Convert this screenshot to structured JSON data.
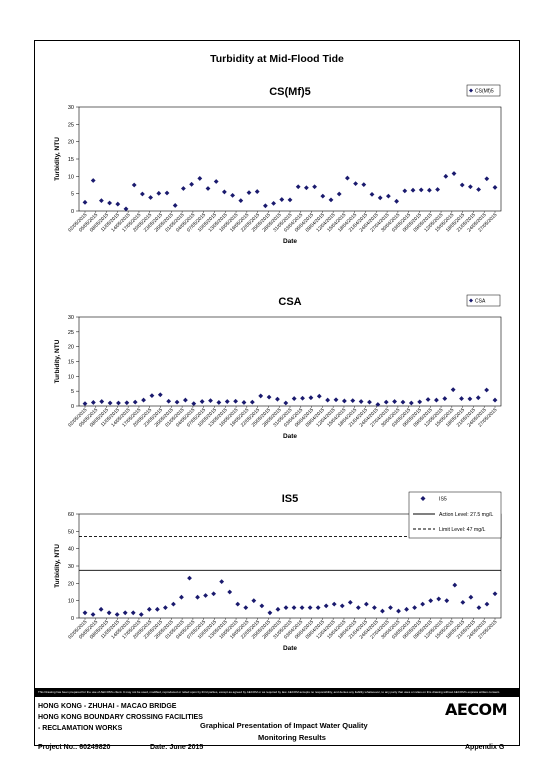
{
  "page": {
    "title": "Turbidity at Mid-Flood Tide",
    "disclaimer": "This Drawing has been prepared for the use of AECOM's client. It may not be used, modified, reproduced or relied upon by third parties, except as agreed by AECOM or as required by law. AECOM accepts no responsibility, and denies any liability whatsoever, to any party that uses or relies on this drawing without AECOM's express written consent.",
    "footer": {
      "line1": "HONG KONG - ZHUHAI - MACAO BRIDGE",
      "line2": "HONG KONG BOUNDARY CROSSING FACILITIES",
      "line3": "- RECLAMATION WORKS",
      "heading1": "Graphical Presentation of Impact Water Quality",
      "heading2": "Monitoring Results",
      "project": "Project No.: 60249820",
      "date": "Date: June 2015",
      "appendix": "Appendix G",
      "logo": "AECOM"
    },
    "marker_color": "#1a1a6e"
  },
  "chart_data": [
    {
      "type": "scatter",
      "title": "CS(Mf)5",
      "xlabel": "Date",
      "ylabel": "Turbidity, NTU",
      "ylim": [
        0,
        30
      ],
      "yticks": [
        0,
        5,
        10,
        15,
        20,
        25,
        30
      ],
      "legend": [
        "CS(Mf)5"
      ],
      "x_tick_labels": [
        "02/05/2015",
        "05/05/2015",
        "08/05/2015",
        "11/05/2015",
        "14/05/2015",
        "17/05/2015",
        "20/05/2015",
        "23/05/2015",
        "26/05/2015",
        "01/05/2015",
        "04/05/2015",
        "07/05/2015",
        "10/05/2015",
        "13/05/2015",
        "16/05/2015",
        "19/05/2015",
        "22/05/2015",
        "25/05/2015",
        "28/05/2015",
        "31/05/2015",
        "03/04/2015",
        "06/04/2015",
        "09/04/2015",
        "12/04/2015",
        "15/04/2015",
        "18/04/2015",
        "21/04/2015",
        "24/04/2015",
        "27/04/2015",
        "30/04/2015",
        "03/05/2015",
        "06/05/2015",
        "09/05/2015",
        "12/05/2015",
        "15/05/2015",
        "18/05/2015",
        "21/05/2015",
        "24/05/2015",
        "27/05/2015"
      ],
      "series": [
        {
          "name": "CS(Mf)5",
          "values": [
            2.5,
            8.8,
            3.0,
            2.3,
            2.0,
            0.6,
            7.5,
            4.9,
            3.9,
            5.1,
            5.2,
            1.6,
            6.5,
            7.7,
            9.4,
            6.5,
            8.5,
            5.5,
            4.5,
            3.0,
            5.3,
            5.6,
            1.5,
            2.2,
            3.3,
            3.2,
            7.0,
            6.7,
            7.0,
            4.3,
            3.2,
            4.9,
            9.5,
            7.9,
            7.6,
            4.8,
            3.8,
            4.3,
            2.8,
            5.8,
            6.0,
            6.1,
            6.0,
            6.2,
            10.0,
            10.8,
            7.5,
            7.0,
            6.2,
            9.3,
            6.8
          ]
        }
      ]
    },
    {
      "type": "scatter",
      "title": "CSA",
      "xlabel": "Date",
      "ylabel": "Turbidity, NTU",
      "ylim": [
        0,
        30
      ],
      "yticks": [
        0,
        5,
        10,
        15,
        20,
        25,
        30
      ],
      "legend": [
        "CSA"
      ],
      "x_tick_labels": [
        "02/05/2015",
        "05/05/2015",
        "08/05/2015",
        "11/05/2015",
        "14/05/2015",
        "17/05/2015",
        "20/05/2015",
        "23/05/2015",
        "26/05/2015",
        "01/05/2015",
        "04/05/2015",
        "07/05/2015",
        "10/05/2015",
        "13/05/2015",
        "16/05/2015",
        "19/05/2015",
        "22/05/2015",
        "25/05/2015",
        "28/05/2015",
        "31/05/2015",
        "03/04/2015",
        "06/04/2015",
        "09/04/2015",
        "12/04/2015",
        "15/04/2015",
        "18/04/2015",
        "21/04/2015",
        "24/04/2015",
        "27/04/2015",
        "30/04/2015",
        "03/05/2015",
        "06/05/2015",
        "09/05/2015",
        "12/05/2015",
        "15/05/2015",
        "18/05/2015",
        "21/05/2015",
        "24/05/2015",
        "27/05/2015"
      ],
      "series": [
        {
          "name": "CSA",
          "values": [
            0.8,
            1.2,
            1.5,
            1.0,
            1.0,
            1.1,
            1.3,
            2.0,
            3.5,
            3.8,
            1.6,
            1.3,
            2.0,
            0.8,
            1.5,
            1.8,
            1.2,
            1.5,
            1.6,
            1.2,
            1.3,
            3.4,
            3.0,
            2.3,
            1.0,
            2.5,
            2.6,
            2.8,
            3.3,
            2.0,
            2.1,
            1.7,
            1.8,
            1.5,
            1.3,
            0.5,
            1.3,
            1.5,
            1.3,
            1.0,
            1.4,
            2.2,
            2.0,
            2.5,
            5.5,
            2.5,
            2.4,
            2.8,
            5.4,
            2.0
          ]
        }
      ]
    },
    {
      "type": "scatter",
      "title": "IS5",
      "xlabel": "Date",
      "ylabel": "Turbidity, NTU",
      "ylim": [
        0,
        60
      ],
      "yticks": [
        0,
        10,
        20,
        30,
        40,
        50,
        60
      ],
      "legend": [
        "IS5",
        "Action Level: 27.5 mg/L",
        "Limit Level: 47 mg/L"
      ],
      "action_level": 27.5,
      "limit_level": 47,
      "x_tick_labels": [
        "02/05/2015",
        "05/05/2015",
        "08/05/2015",
        "11/05/2015",
        "14/05/2015",
        "17/05/2015",
        "20/05/2015",
        "23/05/2015",
        "26/05/2015",
        "01/05/2015",
        "04/05/2015",
        "07/05/2015",
        "10/05/2015",
        "13/05/2015",
        "16/05/2015",
        "19/05/2015",
        "22/05/2015",
        "25/05/2015",
        "28/05/2015",
        "31/05/2015",
        "03/04/2015",
        "06/04/2015",
        "09/04/2015",
        "12/04/2015",
        "15/04/2015",
        "18/04/2015",
        "21/04/2015",
        "24/04/2015",
        "27/04/2015",
        "30/04/2015",
        "03/05/2015",
        "06/05/2015",
        "09/05/2015",
        "12/05/2015",
        "15/05/2015",
        "18/05/2015",
        "21/05/2015",
        "24/05/2015",
        "27/05/2015"
      ],
      "series": [
        {
          "name": "IS5",
          "values": [
            3.0,
            2.0,
            5.0,
            3.0,
            2.0,
            3.0,
            3.0,
            2.0,
            5.0,
            5.0,
            6.0,
            8.0,
            12.0,
            23.0,
            12.0,
            13.0,
            14.0,
            21.0,
            15.0,
            8.0,
            6.0,
            10.0,
            7.0,
            3.0,
            5.0,
            6.0,
            6.0,
            6.0,
            6.0,
            6.0,
            7.0,
            8.0,
            7.0,
            9.0,
            6.0,
            8.0,
            6.0,
            4.0,
            6.0,
            4.0,
            5.0,
            6.0,
            8.0,
            10.0,
            11.0,
            10.0,
            19.0,
            9.0,
            12.0,
            6.0,
            8.0,
            14.0
          ]
        }
      ]
    }
  ]
}
